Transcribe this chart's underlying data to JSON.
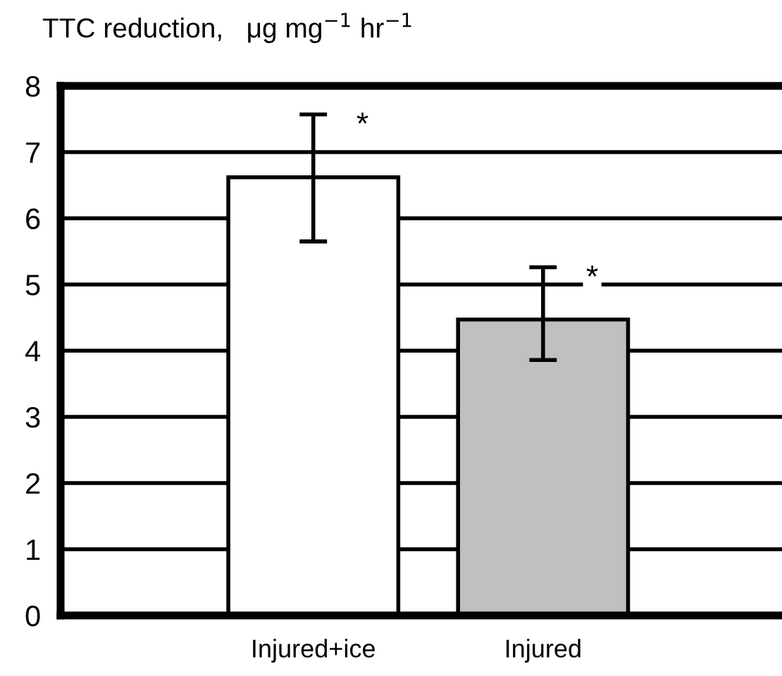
{
  "chart_data": {
    "type": "bar",
    "ylabel": "TTC reduction,   μg mg$^{−1}$ hr$^{−1}$",
    "categories": [
      "Injured+ice",
      "Injured"
    ],
    "values": [
      6.62,
      4.47
    ],
    "colors": [
      "#ffffff",
      "#c0c0c0"
    ],
    "errors": [
      [
        5.65,
        7.57
      ],
      [
        3.86,
        5.26
      ]
    ],
    "ylim": [
      0,
      8
    ],
    "yticks": [
      0,
      1,
      2,
      3,
      4,
      5,
      6,
      7,
      8
    ],
    "grid": "y",
    "annotations": [
      {
        "text": "*",
        "x": "Injured+ice",
        "y": 7.57
      },
      {
        "text": "*",
        "x": "Injured",
        "y": 5.26
      }
    ]
  }
}
